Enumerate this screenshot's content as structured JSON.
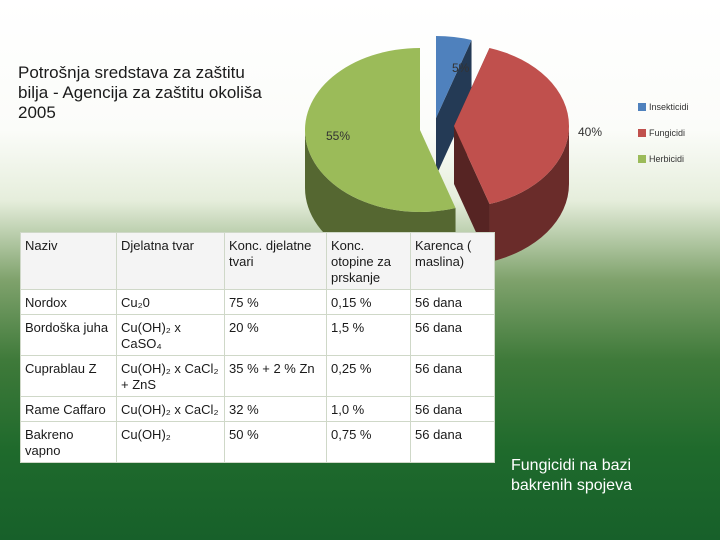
{
  "chart_data": {
    "type": "pie",
    "title": "Potrošnja sredstava za zaštitu\nbilja - Agencija za zaštitu okoliša\n 2005",
    "categories": [
      "Insekticidi",
      "Fungicidi",
      "Herbicidi"
    ],
    "values": [
      5,
      40,
      55
    ],
    "data_labels": [
      "5%",
      "40%",
      "55%"
    ],
    "colors": [
      "#4f81bd",
      "#c0504d",
      "#9bbb59"
    ],
    "legend_position": "right",
    "style": "3d-exploded"
  },
  "table": {
    "headers": [
      "Naziv",
      "Djelatna tvar",
      "Konc. djelatne tvari",
      "Konc. otopine za prskanje",
      "Karenca ( maslina)"
    ],
    "rows": [
      [
        "Nordox",
        "Cu₂0",
        "75 %",
        "0,15 %",
        "56 dana"
      ],
      [
        "Bordoška juha",
        "Cu(OH)₂ x CaSO₄",
        "20 %",
        "1,5 %",
        "56 dana"
      ],
      [
        "Cuprablau Z",
        "Cu(OH)₂ x CaCl₂ + ZnS",
        "35 % + 2 % Zn",
        "0,25 %",
        "56 dana"
      ],
      [
        "Rame Caffaro",
        "Cu(OH)₂ x CaCl₂",
        "32 %",
        "1,0 %",
        "56 dana"
      ],
      [
        "Bakreno vapno",
        "Cu(OH)₂",
        "50 %",
        "0,75 %",
        "56 dana"
      ]
    ]
  },
  "note": "Fungicidi na bazi\nbakrenih spojeva"
}
